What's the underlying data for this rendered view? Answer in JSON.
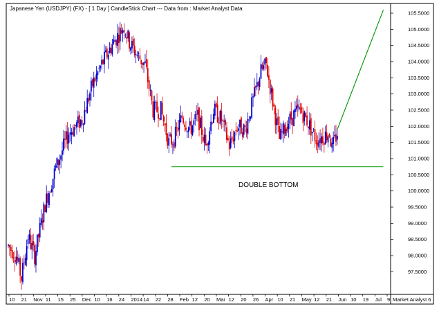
{
  "chart_data": {
    "type": "candlestick",
    "title": "Japanese Yen (USDJPY) (FX) -   [ 1 Day ] CandleStick Chart --- Data from : Market Analyst Data",
    "ylim": [
      96.8,
      105.8
    ],
    "y_ticks": [
      "105.5000",
      "105.0000",
      "104.5000",
      "104.0000",
      "103.5000",
      "103.0000",
      "102.5000",
      "102.0000",
      "101.5000",
      "101.0000",
      "100.5000",
      "100.0000",
      "99.5000",
      "99.0000",
      "98.5000",
      "98.0000",
      "97.5000"
    ],
    "x_ticks": [
      "10",
      "21",
      "Nov",
      "11",
      "15",
      "25",
      "Dec",
      "10",
      "16",
      "24",
      "2014",
      "14",
      "22",
      "28",
      "Feb",
      "12",
      "20",
      "Mar",
      "12",
      "20",
      "26",
      "Apr",
      "10",
      "21",
      "May",
      "12",
      "21",
      "Jun",
      "10",
      "19",
      "Jul",
      "9"
    ],
    "up_color": "#0000cc",
    "down_color": "#dd0000",
    "support_color": "#22aa22",
    "projection_color": "#119911",
    "waypoints": [
      [
        0,
        98.3
      ],
      [
        6,
        98.0
      ],
      [
        10,
        97.3
      ],
      [
        15,
        98.6
      ],
      [
        20,
        98.0
      ],
      [
        28,
        99.6
      ],
      [
        36,
        100.7
      ],
      [
        46,
        101.8
      ],
      [
        56,
        102.2
      ],
      [
        64,
        103.3
      ],
      [
        72,
        104.0
      ],
      [
        80,
        104.6
      ],
      [
        88,
        105.1
      ],
      [
        92,
        104.6
      ],
      [
        98,
        104.2
      ],
      [
        104,
        103.9
      ],
      [
        110,
        102.5
      ],
      [
        116,
        102.5
      ],
      [
        122,
        101.5
      ],
      [
        126,
        101.6
      ],
      [
        132,
        102.3
      ],
      [
        138,
        101.9
      ],
      [
        144,
        102.3
      ],
      [
        150,
        101.4
      ],
      [
        156,
        102.5
      ],
      [
        162,
        102.2
      ],
      [
        168,
        101.4
      ],
      [
        174,
        102.0
      ],
      [
        180,
        101.9
      ],
      [
        186,
        102.8
      ],
      [
        192,
        103.7
      ],
      [
        196,
        103.9
      ],
      [
        200,
        103.0
      ],
      [
        206,
        101.6
      ],
      [
        212,
        102.1
      ],
      [
        218,
        102.4
      ],
      [
        222,
        102.5
      ],
      [
        228,
        102.1
      ],
      [
        234,
        101.6
      ],
      [
        240,
        101.7
      ],
      [
        244,
        101.8
      ],
      [
        246,
        101.3
      ],
      [
        250,
        101.8
      ]
    ],
    "support_level": 100.75,
    "support_start_index": 124,
    "support_end_index": 285,
    "projection": {
      "start": [
        250,
        101.9
      ],
      "end": [
        285,
        105.6
      ]
    },
    "annotation": "DOUBLE BOTTOM",
    "source_label": "Market Analyst 6"
  }
}
